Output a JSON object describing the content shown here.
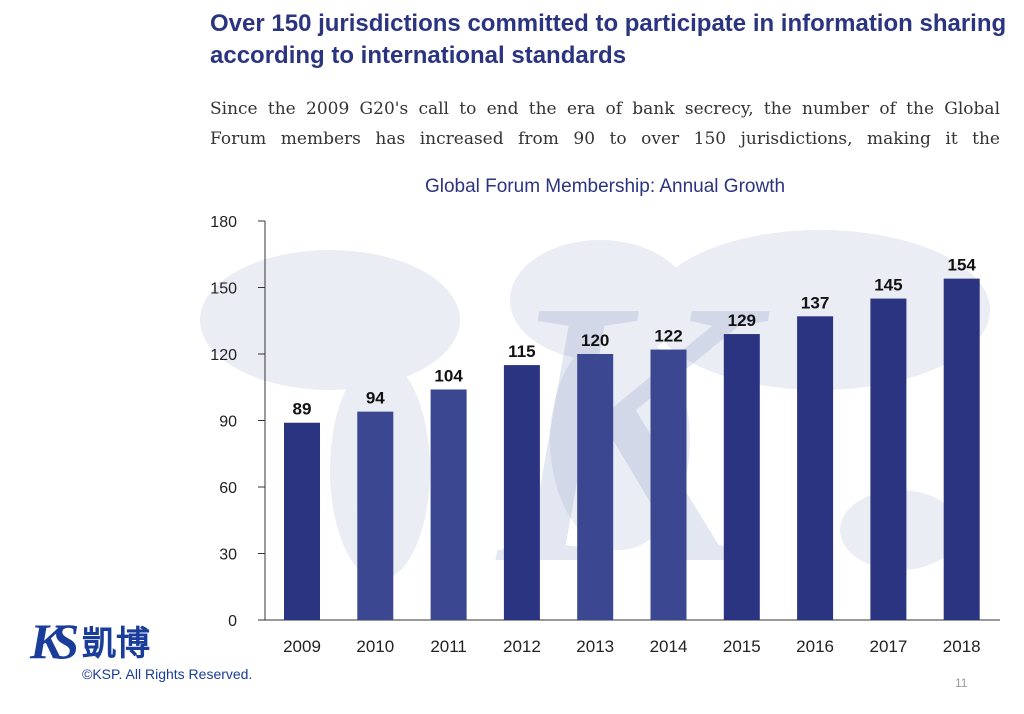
{
  "heading": "Over 150 jurisdictions committed to participate in information sharing according to international standards",
  "paragraph_line1": "Since the 2009 G20's call to end the era of bank secrecy, the number of the Global",
  "paragraph_line2": "Forum members has increased from 90 to over 150 jurisdictions, making it the",
  "logo": {
    "ks": "KS",
    "chinese": "凱博",
    "rights": "©KSP. All Rights Reserved."
  },
  "page_number": "11",
  "colors": {
    "bar": "#2b3480",
    "bar_light": "#3b4791",
    "title": "#2b3480"
  },
  "chart_data": {
    "type": "bar",
    "title": "Global Forum Membership: Annual Growth",
    "categories": [
      "2009",
      "2010",
      "2011",
      "2012",
      "2013",
      "2014",
      "2015",
      "2016",
      "2017",
      "2018"
    ],
    "values": [
      89,
      94,
      104,
      115,
      120,
      122,
      129,
      137,
      145,
      154
    ],
    "yticks": [
      0,
      30,
      60,
      90,
      120,
      150,
      180
    ],
    "ylim": [
      0,
      180
    ],
    "xlabel": "",
    "ylabel": "",
    "grid": false,
    "data_labels": true
  }
}
